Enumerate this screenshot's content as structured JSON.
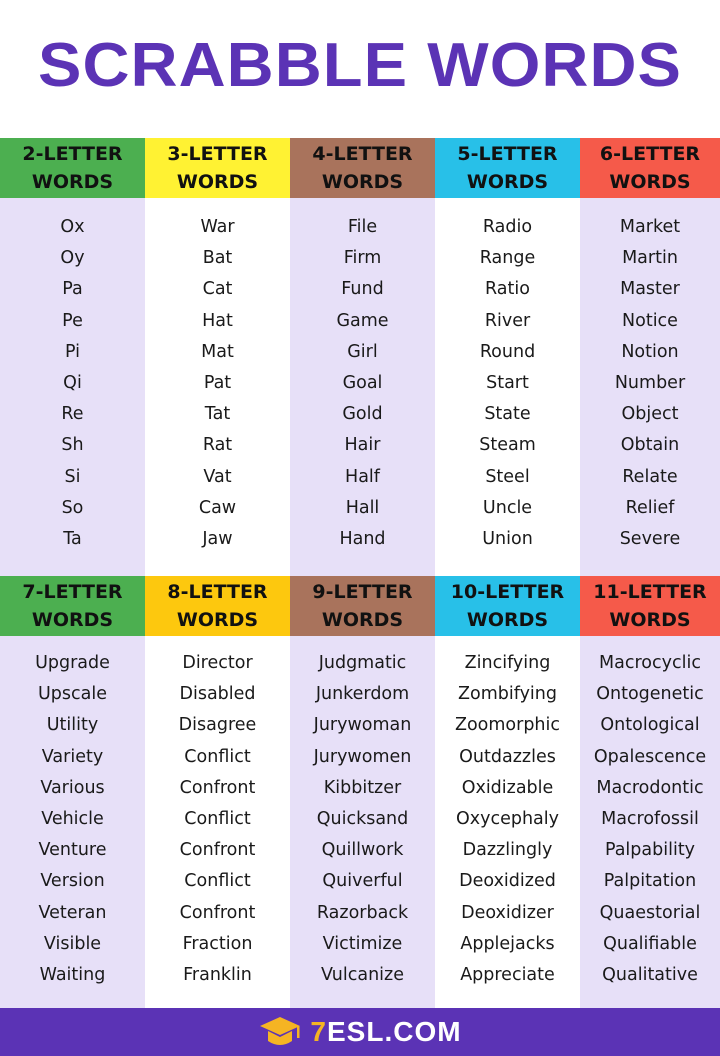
{
  "title": "SCRABBLE WORDS",
  "colors": {
    "title": "#5b33b5",
    "green": "#4caf50",
    "yellow": "#fff233",
    "orange_yellow": "#fdc80e",
    "brown": "#a9735c",
    "cyan": "#28c0e8",
    "red": "#f55a4a",
    "lavender": "#e7e0f8",
    "footer": "#5b33b5"
  },
  "sections": [
    {
      "columns": [
        {
          "header": [
            "2-LETTER",
            "WORDS"
          ],
          "color": "#4caf50",
          "words": [
            "Ox",
            "Oy",
            "Pa",
            "Pe",
            "Pi",
            "Qi",
            "Re",
            "Sh",
            "Si",
            "So",
            "Ta"
          ]
        },
        {
          "header": [
            "3-LETTER",
            "WORDS"
          ],
          "color": "#fff233",
          "words": [
            "War",
            "Bat",
            "Cat",
            "Hat",
            "Mat",
            "Pat",
            "Tat",
            "Rat",
            "Vat",
            "Caw",
            "Jaw"
          ]
        },
        {
          "header": [
            "4-LETTER",
            "WORDS"
          ],
          "color": "#a9735c",
          "words": [
            "File",
            "Firm",
            "Fund",
            "Game",
            "Girl",
            "Goal",
            "Gold",
            "Hair",
            "Half",
            "Hall",
            "Hand"
          ]
        },
        {
          "header": [
            "5-LETTER",
            "WORDS"
          ],
          "color": "#28c0e8",
          "words": [
            "Radio",
            "Range",
            "Ratio",
            "River",
            "Round",
            "Start",
            "State",
            "Steam",
            "Steel",
            "Uncle",
            "Union"
          ]
        },
        {
          "header": [
            "6-LETTER",
            "WORDS"
          ],
          "color": "#f55a4a",
          "words": [
            "Market",
            "Martin",
            "Master",
            "Notice",
            "Notion",
            "Number",
            "Object",
            "Obtain",
            "Relate",
            "Relief",
            "Severe"
          ]
        }
      ]
    },
    {
      "columns": [
        {
          "header": [
            "7-LETTER",
            "WORDS"
          ],
          "color": "#4caf50",
          "words": [
            "Upgrade",
            "Upscale",
            "Utility",
            "Variety",
            "Various",
            "Vehicle",
            "Venture",
            "Version",
            "Veteran",
            "Visible",
            "Waiting"
          ]
        },
        {
          "header": [
            "8-LETTER",
            "WORDS"
          ],
          "color": "#fdc80e",
          "words": [
            "Director",
            "Disabled",
            "Disagree",
            "Conflict",
            "Confront",
            "Conflict",
            "Confront",
            "Conflict",
            "Confront",
            "Fraction",
            "Franklin"
          ]
        },
        {
          "header": [
            "9-LETTER",
            "WORDS"
          ],
          "color": "#a9735c",
          "words": [
            "Judgmatic",
            "Junkerdom",
            "Jurywoman",
            "Jurywomen",
            "Kibbitzer",
            "Quicksand",
            "Quillwork",
            "Quiverful",
            "Razorback",
            "Victimize",
            "Vulcanize"
          ]
        },
        {
          "header": [
            "10-LETTER",
            "WORDS"
          ],
          "color": "#28c0e8",
          "words": [
            "Zincifying",
            "Zombifying",
            "Zoomorphic",
            "Outdazzles",
            "Oxidizable",
            "Oxycephaly",
            "Dazzlingly",
            "Deoxidized",
            "Deoxidizer",
            "Applejacks",
            "Appreciate"
          ]
        },
        {
          "header": [
            "11-LETTER",
            "WORDS"
          ],
          "color": "#f55a4a",
          "words": [
            "Macrocyclic",
            "Ontogenetic",
            "Ontological",
            "Opalescence",
            "Macrodontic",
            "Macrofossil",
            "Palpability",
            "Palpitation",
            "Quaestorial",
            "Qualifiable",
            "Qualitative"
          ]
        }
      ]
    }
  ],
  "footer": {
    "logo_icon": "graduation-cap-icon",
    "brand_seven": "7",
    "brand_rest": "ESL.COM"
  }
}
